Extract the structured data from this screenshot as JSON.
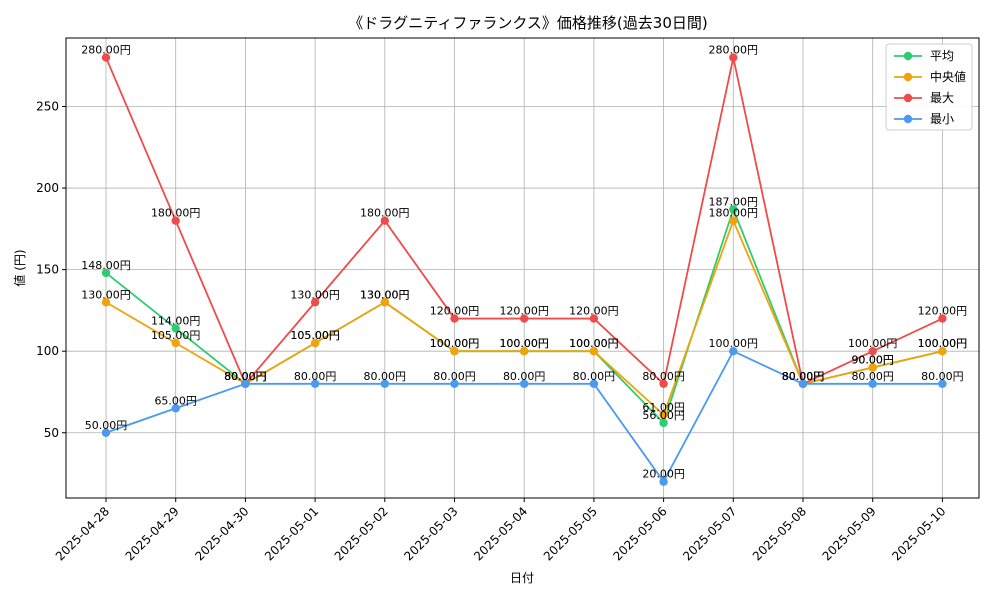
{
  "chart_data": {
    "type": "line",
    "title": "《ドラグニティファランクス》価格推移(過去30日間)",
    "xlabel": "日付",
    "ylabel": "値 (円)",
    "ylim": [
      10,
      292
    ],
    "yticks": [
      "50",
      "100",
      "150",
      "200",
      "250"
    ],
    "ytick_values": [
      50,
      100,
      150,
      200,
      250
    ],
    "grid": true,
    "legend_position": "top-right",
    "categories": [
      "2025-04-28",
      "2025-04-29",
      "2025-04-30",
      "2025-05-01",
      "2025-05-02",
      "2025-05-03",
      "2025-05-04",
      "2025-05-05",
      "2025-05-06",
      "2025-05-07",
      "2025-05-08",
      "2025-05-09",
      "2025-05-10"
    ],
    "series": [
      {
        "name": "平均",
        "color": "#2ecc71",
        "values": [
          148,
          114,
          80,
          105,
          130,
          100,
          100,
          100,
          56,
          187,
          80,
          90,
          100
        ],
        "labels": [
          "148.00円",
          "114.00円",
          "80.00円",
          "105.00円",
          "130.00円",
          "100.00円",
          "100.00円",
          "100.00円",
          "56.00円",
          "187.00円",
          "80.00円",
          "90.00円",
          "100.00円"
        ]
      },
      {
        "name": " 中央値",
        "color": "#f0a30a",
        "values": [
          130,
          105,
          80,
          105,
          130,
          100,
          100,
          100,
          61,
          180,
          80,
          90,
          100
        ],
        "labels": [
          "130.00円",
          "105.00円",
          "80.00円",
          "105.00円",
          "130.00円",
          "100.00円",
          "100.00円",
          "100.00円",
          "61.00円",
          "180.00円",
          "80.00円",
          "90.00円",
          "100.00円"
        ]
      },
      {
        "name": "最大",
        "color": "#ef4b4b",
        "values": [
          280,
          180,
          80,
          130,
          180,
          120,
          120,
          120,
          80,
          280,
          80,
          100,
          120
        ],
        "labels": [
          "280.00円",
          "180.00円",
          "80.00円",
          "130.00円",
          "180.00円",
          "120.00円",
          "120.00円",
          "120.00円",
          "80.00円",
          "280.00円",
          "80.00円",
          "100.00円",
          "120.00円"
        ]
      },
      {
        "name": "最小",
        "color": "#4a9af0",
        "values": [
          50,
          65,
          80,
          80,
          80,
          80,
          80,
          80,
          20,
          100,
          80,
          80,
          80
        ],
        "labels": [
          "50.00円",
          "65.00円",
          "80.00円",
          "80.00円",
          "80.00円",
          "80.00円",
          "80.00円",
          "80.00円",
          "20.00円",
          "100.00円",
          "80.00円",
          "80.00円",
          "80.00円"
        ]
      }
    ]
  }
}
